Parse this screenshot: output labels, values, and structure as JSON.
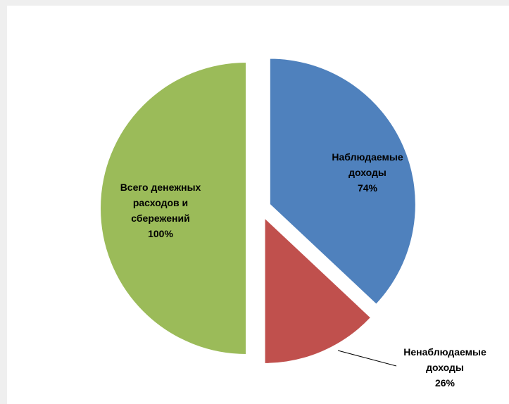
{
  "chart_data": {
    "type": "pie",
    "title": "",
    "slices": [
      {
        "name": "Наблюдаемые доходы",
        "label_lines": [
          "Наблюдаемые",
          "доходы",
          "74%"
        ],
        "percent_label": "74%",
        "value": 37,
        "color": "#4f81bd"
      },
      {
        "name": "Ненаблюдаемые доходы",
        "label_lines": [
          "Ненаблюдаемые",
          "доходы",
          "26%"
        ],
        "percent_label": "26%",
        "value": 13,
        "color": "#c0504d"
      },
      {
        "name": "Всего денежных расходов и сбережений",
        "label_lines": [
          "Всего денежных",
          "расходов и",
          "сбережений",
          "100%"
        ],
        "percent_label": "100%",
        "value": 50,
        "color": "#9bbb59"
      }
    ],
    "exploded": true,
    "legend": "none",
    "grid": false
  }
}
